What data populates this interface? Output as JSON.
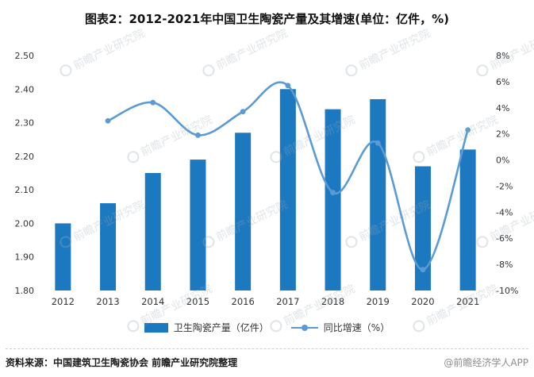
{
  "title": "图表2：2012-2021年中国卫生陶瓷产量及其增速(单位：亿件，%)",
  "chart_data": {
    "type": "bar",
    "categories": [
      "2012",
      "2013",
      "2014",
      "2015",
      "2016",
      "2017",
      "2018",
      "2019",
      "2020",
      "2021"
    ],
    "series": [
      {
        "name": "卫生陶瓷产量（亿件）",
        "type": "bar",
        "axis": "left",
        "color": "#1c79c0",
        "values": [
          2.0,
          2.06,
          2.15,
          2.19,
          2.27,
          2.4,
          2.34,
          2.37,
          2.17,
          2.22
        ]
      },
      {
        "name": "同比增速（%）",
        "type": "line",
        "axis": "right",
        "color": "#5b9bd5",
        "values": [
          null,
          3.0,
          4.4,
          1.9,
          3.7,
          5.7,
          -2.5,
          1.3,
          -8.4,
          2.3
        ]
      }
    ],
    "left_axis": {
      "min": 1.8,
      "max": 2.5,
      "step": 0.1,
      "ticks": [
        "2.50",
        "2.40",
        "2.30",
        "2.20",
        "2.10",
        "2.00",
        "1.90",
        "1.80"
      ]
    },
    "right_axis": {
      "min": -10,
      "max": 8,
      "step": 2,
      "ticks": [
        "8%",
        "6%",
        "4%",
        "2%",
        "0%",
        "-2%",
        "-4%",
        "-6%",
        "-8%",
        "-10%"
      ]
    },
    "grid": false,
    "legend_position": "bottom"
  },
  "legend": {
    "bar_label": "卫生陶瓷产量（亿件）",
    "line_label": "同比增速（%）"
  },
  "footer": {
    "source": "资料来源：中国建筑卫生陶瓷协会 前瞻产业研究院整理",
    "credit": "@前瞻经济学人APP"
  },
  "watermark": {
    "text": "前瞻产业研究院"
  }
}
